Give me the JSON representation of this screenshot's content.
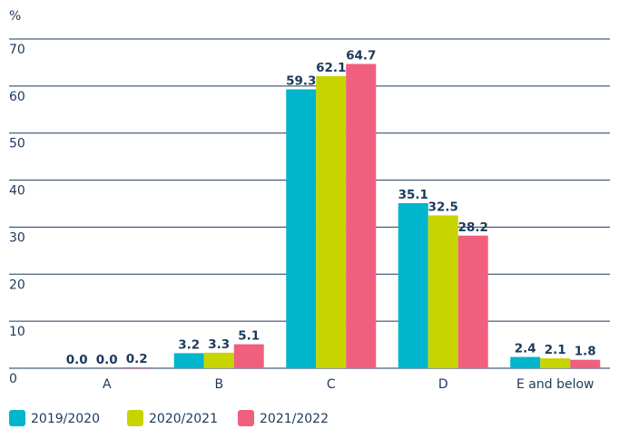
{
  "chart_data": {
    "type": "bar",
    "y_label": "%",
    "categories": [
      "A",
      "B",
      "C",
      "D",
      "E and below"
    ],
    "series": [
      {
        "name": "2019/2020",
        "color": "#00b5cc",
        "values": [
          0.0,
          3.2,
          59.3,
          35.1,
          2.4
        ],
        "value_labels": [
          "0.0",
          "3.2",
          "59.3",
          "35.1",
          "2.4"
        ]
      },
      {
        "name": "2020/2021",
        "color": "#c8d400",
        "values": [
          0.0,
          3.3,
          62.1,
          32.5,
          2.1
        ],
        "value_labels": [
          "0.0",
          "3.3",
          "62.1",
          "32.5",
          "2.1"
        ]
      },
      {
        "name": "2021/2022",
        "color": "#f0607e",
        "values": [
          0.2,
          5.1,
          64.7,
          28.2,
          1.8
        ],
        "value_labels": [
          "0.2",
          "5.1",
          "64.7",
          "28.2",
          "1.8"
        ]
      }
    ],
    "ylim": [
      0,
      70
    ],
    "yticks": [
      0,
      10,
      20,
      30,
      40,
      50,
      60,
      70
    ],
    "grid": true
  }
}
